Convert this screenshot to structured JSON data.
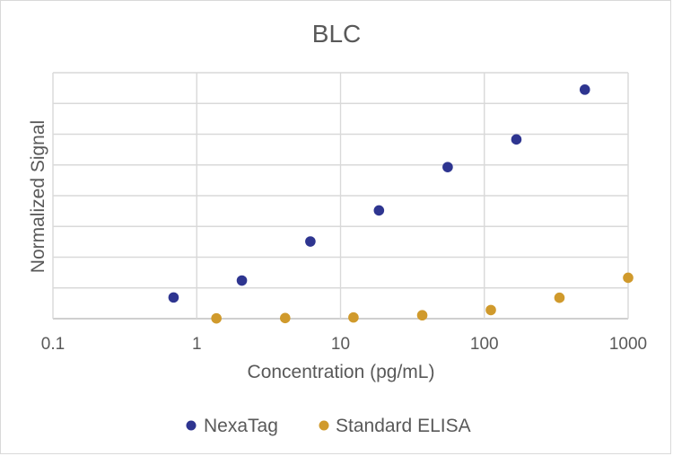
{
  "chart_data": {
    "type": "scatter",
    "title": "BLC",
    "xlabel": "Concentration (pg/mL)",
    "ylabel": "Normalized Signal",
    "x_scale": "log",
    "xlim": [
      0.1,
      1000
    ],
    "ylim": [
      0,
      8
    ],
    "x_ticks": [
      0.1,
      1,
      10,
      100,
      1000
    ],
    "x_tick_labels": [
      "0.1",
      "1",
      "10",
      "100",
      "1000"
    ],
    "y_tick_labels_shown": false,
    "grid": true,
    "legend": "bottom",
    "series": [
      {
        "name": "NexaTag",
        "color": "#2e3590",
        "points": [
          {
            "x": 0.69,
            "y": 0.69
          },
          {
            "x": 2.06,
            "y": 1.24
          },
          {
            "x": 6.17,
            "y": 2.51
          },
          {
            "x": 18.5,
            "y": 3.52
          },
          {
            "x": 55.6,
            "y": 4.93
          },
          {
            "x": 167,
            "y": 5.83
          },
          {
            "x": 500,
            "y": 7.45
          }
        ]
      },
      {
        "name": "Standard ELISA",
        "color": "#d09a2c",
        "points": [
          {
            "x": 1.37,
            "y": 0.01
          },
          {
            "x": 4.12,
            "y": 0.02
          },
          {
            "x": 12.3,
            "y": 0.04
          },
          {
            "x": 37.0,
            "y": 0.11
          },
          {
            "x": 111,
            "y": 0.28
          },
          {
            "x": 333,
            "y": 0.68
          },
          {
            "x": 1000,
            "y": 1.33
          }
        ]
      }
    ]
  }
}
